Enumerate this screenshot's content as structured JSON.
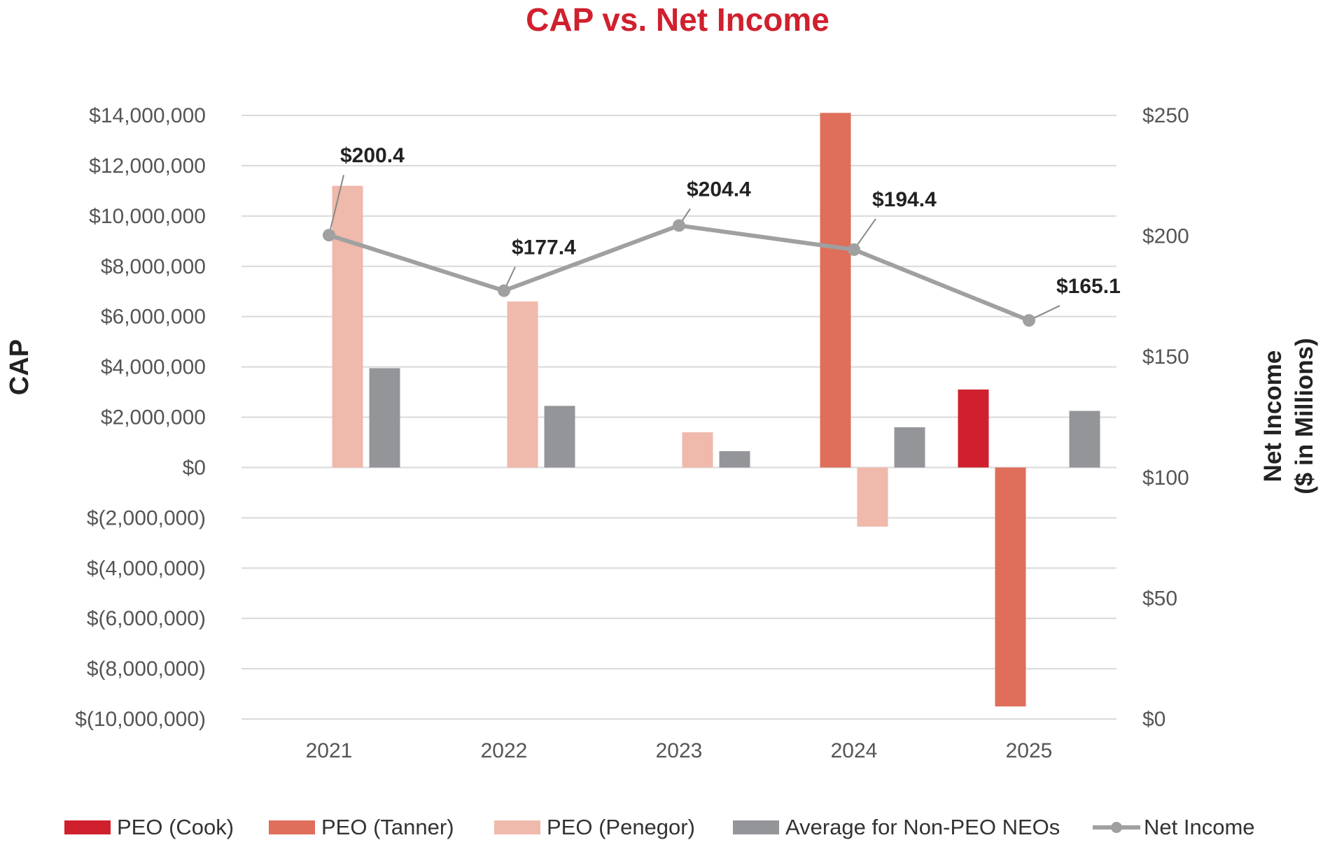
{
  "chart_data": {
    "type": "bar",
    "title": "CAP vs. Net Income",
    "title_color": "#d0202e",
    "categories": [
      "2021",
      "2022",
      "2023",
      "2024",
      "2025"
    ],
    "ylabel": "CAP",
    "y2label_line1": "Net Income",
    "y2label_line2": "($ in Millions)",
    "ylim": [
      -10000000,
      14000000
    ],
    "y_ticks": [
      14000000,
      12000000,
      10000000,
      8000000,
      6000000,
      4000000,
      2000000,
      0,
      -2000000,
      -4000000,
      -6000000,
      -8000000,
      -10000000
    ],
    "y_tick_labels": [
      "$14,000,000",
      "$12,000,000",
      "$10,000,000",
      "$8,000,000",
      "$6,000,000",
      "$4,000,000",
      "$2,000,000",
      "$0",
      "$(2,000,000)",
      "$(4,000,000)",
      "$(6,000,000)",
      "$(8,000,000)",
      "$(10,000,000)"
    ],
    "y2lim": [
      0,
      250
    ],
    "y2_ticks": [
      250,
      200,
      150,
      100,
      50,
      0
    ],
    "y2_tick_labels": [
      "$250",
      "$200",
      "$150",
      "$100",
      "$50",
      "$0"
    ],
    "grid": true,
    "legend_position": "bottom",
    "series": [
      {
        "name": "PEO (Cook)",
        "color": "#d0202e",
        "values": [
          null,
          null,
          null,
          null,
          3100000
        ]
      },
      {
        "name": "PEO (Tanner)",
        "color": "#df6e5b",
        "values": [
          null,
          null,
          null,
          14100000,
          -9500000
        ]
      },
      {
        "name": "PEO (Penegor)",
        "color": "#efb9ab",
        "values": [
          11200000,
          6600000,
          1400000,
          -2350000,
          null
        ]
      },
      {
        "name": "Average for Non-PEO NEOs",
        "color": "#939598",
        "values": [
          3950000,
          2450000,
          650000,
          1600000,
          2250000
        ]
      }
    ],
    "line_series": {
      "name": "Net Income",
      "color": "#a0a0a0",
      "values": [
        200.4,
        177.4,
        204.4,
        194.4,
        165.1
      ],
      "labels": [
        "$200.4",
        "$177.4",
        "$204.4",
        "$194.4",
        "$165.1"
      ]
    }
  }
}
